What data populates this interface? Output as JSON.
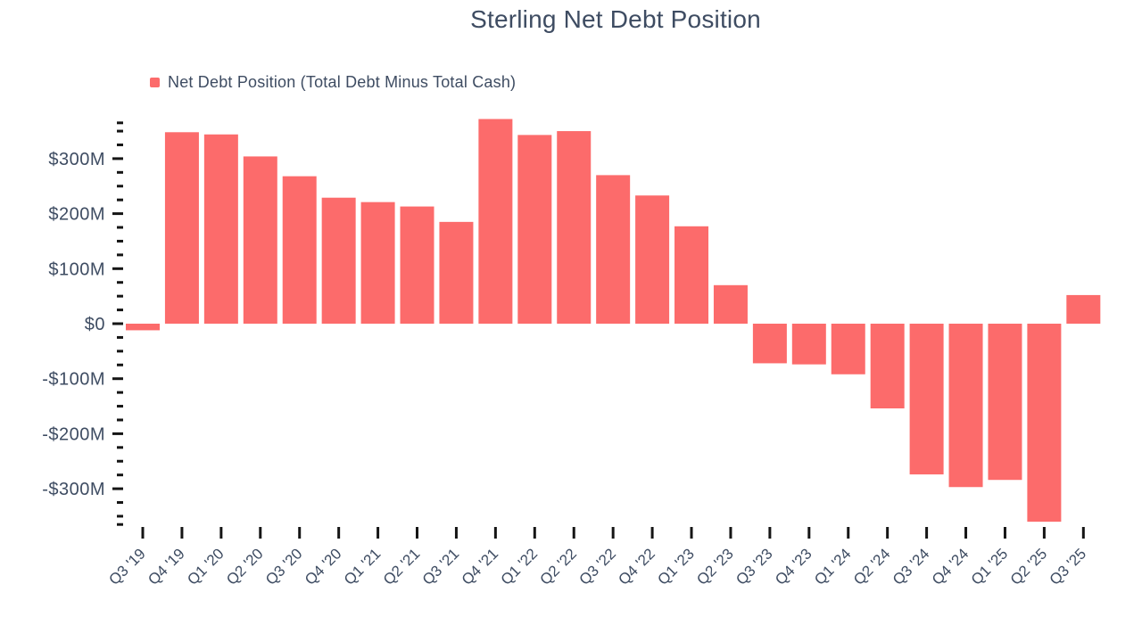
{
  "header": {
    "title": "Sterling Net Debt Position"
  },
  "chart_data": {
    "type": "bar",
    "title": "Sterling Net Debt Position",
    "legend": [
      {
        "label": "Net Debt Position (Total Debt Minus Total Cash)",
        "color": "#FC6B6B"
      }
    ],
    "legend_position": "top-left",
    "unit": "USD millions",
    "grid": false,
    "xlabel": "",
    "ylabel": "",
    "categories": [
      "Q3 '19",
      "Q4 '19",
      "Q1 '20",
      "Q2 '20",
      "Q3 '20",
      "Q4 '20",
      "Q1 '21",
      "Q2 '21",
      "Q3 '21",
      "Q4 '21",
      "Q1 '22",
      "Q2 '22",
      "Q3 '22",
      "Q4 '22",
      "Q1 '23",
      "Q2 '23",
      "Q3 '23",
      "Q4 '23",
      "Q1 '24",
      "Q2 '24",
      "Q3 '24",
      "Q4 '24",
      "Q1 '25",
      "Q2 '25",
      "Q3 '25"
    ],
    "series": [
      {
        "name": "Net Debt Position (Total Debt Minus Total Cash)",
        "color": "#FC6B6B",
        "values": [
          -12,
          348,
          344,
          304,
          268,
          229,
          221,
          213,
          185,
          372,
          343,
          350,
          270,
          233,
          177,
          70,
          -72,
          -74,
          -92,
          -154,
          -274,
          -297,
          -284,
          -360,
          52
        ]
      }
    ],
    "ylim": [
      -365,
      372
    ],
    "yticks_major": [
      {
        "value": 300,
        "label": "$300M"
      },
      {
        "value": 200,
        "label": "$200M"
      },
      {
        "value": 100,
        "label": "$100M"
      },
      {
        "value": 0,
        "label": "$0"
      },
      {
        "value": -100,
        "label": "-$100M"
      },
      {
        "value": -200,
        "label": "-$200M"
      },
      {
        "value": -300,
        "label": "-$300M"
      }
    ],
    "ytick_minor_step": 25,
    "ytick_minor_range": [
      -350,
      350
    ],
    "ytick_edge_values": [
      365,
      -365
    ],
    "colors": {
      "bar": "#FC6B6B",
      "text": "#3E4C62",
      "tick": "#151515",
      "background": "#FFFFFF"
    }
  }
}
